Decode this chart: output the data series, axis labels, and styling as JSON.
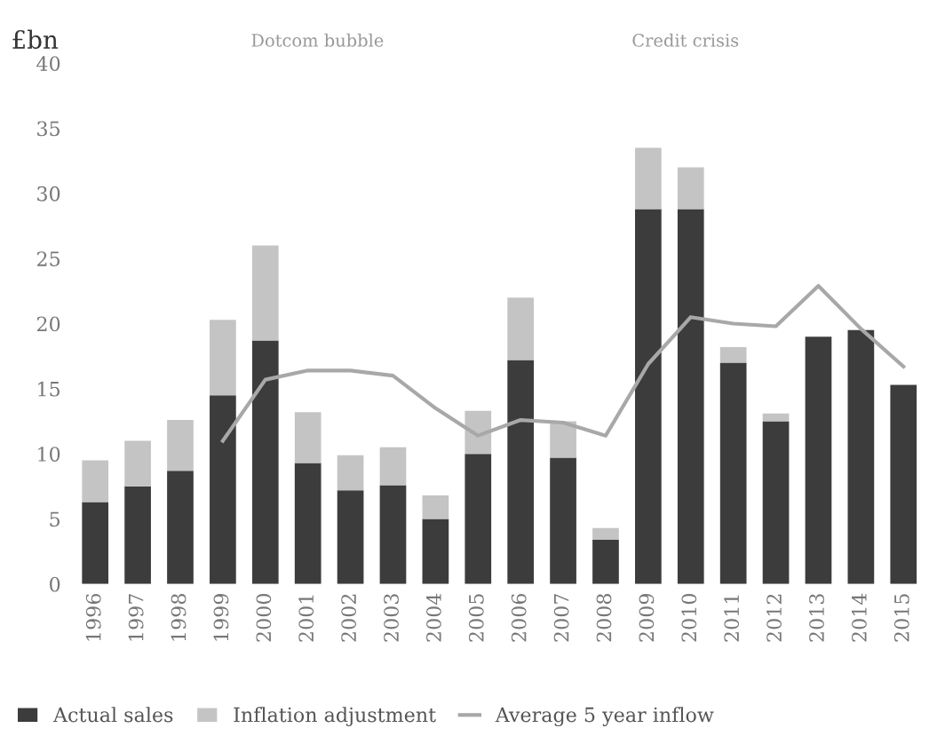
{
  "chart_data": {
    "type": "bar",
    "stacked": true,
    "ylabel": "£bn",
    "annotations": [
      "Dotcom bubble",
      "Credit crisis"
    ],
    "categories": [
      "1996",
      "1997",
      "1998",
      "1999",
      "2000",
      "2001",
      "2002",
      "2003",
      "2004",
      "2005",
      "2006",
      "2007",
      "2008",
      "2009",
      "2010",
      "2011",
      "2012",
      "2013",
      "2014",
      "2015"
    ],
    "series": [
      {
        "name": "Actual sales",
        "color": "#3c3c3c",
        "values": [
          6.3,
          7.5,
          8.7,
          14.5,
          18.7,
          9.3,
          7.2,
          7.6,
          5.0,
          10.0,
          17.2,
          9.7,
          3.4,
          28.8,
          28.8,
          17.0,
          12.5,
          19.0,
          19.5,
          15.3
        ]
      },
      {
        "name": "Inflation adjustment",
        "color": "#c4c4c4",
        "values": [
          3.2,
          3.5,
          3.9,
          5.8,
          7.3,
          3.9,
          2.7,
          2.9,
          1.8,
          3.3,
          4.8,
          2.8,
          0.9,
          4.7,
          3.2,
          1.2,
          0.6,
          null,
          null,
          null
        ]
      },
      {
        "name": "Average 5 year inflow",
        "type": "line",
        "color": "#a8a8a8",
        "values": [
          null,
          null,
          null,
          11.0,
          15.7,
          16.4,
          16.4,
          16.0,
          13.5,
          11.4,
          12.6,
          12.4,
          11.4,
          16.9,
          20.5,
          20.0,
          19.8,
          22.9,
          19.6,
          16.7
        ]
      }
    ],
    "ylim": [
      0,
      40
    ],
    "yticks": [
      0,
      5,
      10,
      15,
      20,
      25,
      30,
      35,
      40
    ],
    "grid": false,
    "legend": "bottom"
  }
}
